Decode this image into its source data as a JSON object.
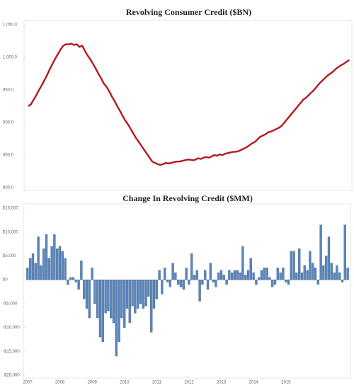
{
  "chart_data": [
    {
      "type": "line",
      "title": "Revolving Consumer Credit ($BN)",
      "color": "#b3191c",
      "values": [
        925,
        928,
        935,
        942,
        950,
        957,
        965,
        973,
        982,
        990,
        998,
        1005,
        1012,
        1018,
        1020,
        1020,
        1021,
        1019,
        1020,
        1016,
        1018,
        1010,
        1003,
        997,
        990,
        983,
        975,
        968,
        960,
        955,
        948,
        940,
        933,
        925,
        918,
        910,
        903,
        897,
        890,
        883,
        876,
        870,
        864,
        858,
        852,
        846,
        840,
        838,
        836,
        835,
        836,
        838,
        837,
        838,
        839,
        840,
        840,
        841,
        842,
        843,
        843,
        842,
        843,
        845,
        844,
        846,
        847,
        846,
        848,
        850,
        849,
        851,
        850,
        852,
        853,
        854,
        855,
        855,
        856,
        858,
        860,
        862,
        865,
        868,
        870,
        874,
        878,
        880,
        882,
        885,
        886,
        888,
        890,
        892,
        895,
        900,
        905,
        910,
        915,
        920,
        925,
        930,
        935,
        938,
        942,
        946,
        950,
        955,
        960,
        964,
        968,
        972,
        975,
        978,
        982,
        985,
        988,
        990,
        993,
        996
      ],
      "ylim": [
        800,
        1050
      ],
      "yticks": [
        {
          "value": 800,
          "label": "800.0"
        },
        {
          "value": 850,
          "label": "850.0"
        },
        {
          "value": 900,
          "label": "900.0"
        },
        {
          "value": 950,
          "label": "950.0"
        },
        {
          "value": 1000,
          "label": "1,000.0"
        },
        {
          "value": 1050,
          "label": "1,050.0"
        }
      ]
    },
    {
      "type": "bar",
      "title": "Change In Revolving Credit ($MM)",
      "color": "#5a86bb",
      "categories": [
        "2007",
        null,
        null,
        null,
        null,
        null,
        null,
        null,
        null,
        null,
        null,
        null,
        "2008",
        null,
        null,
        null,
        null,
        null,
        null,
        null,
        null,
        null,
        null,
        null,
        "2009",
        null,
        null,
        null,
        null,
        null,
        null,
        null,
        null,
        null,
        null,
        null,
        "2010",
        null,
        null,
        null,
        null,
        null,
        null,
        null,
        null,
        null,
        null,
        null,
        "2011",
        null,
        null,
        null,
        null,
        null,
        null,
        null,
        null,
        null,
        null,
        null,
        "2012",
        null,
        null,
        null,
        null,
        null,
        null,
        null,
        null,
        null,
        null,
        null,
        "2013",
        null,
        null,
        null,
        null,
        null,
        null,
        null,
        null,
        null,
        null,
        null,
        "2014",
        null,
        null,
        null,
        null,
        null,
        null,
        null,
        null,
        null,
        null,
        null,
        "2015",
        null,
        null,
        null,
        null,
        null,
        null,
        null,
        null,
        null,
        null,
        null,
        null,
        null,
        null,
        null,
        null,
        null,
        null,
        null,
        null,
        null,
        null,
        null
      ],
      "values": [
        2500,
        4500,
        5500,
        3500,
        9000,
        3000,
        6500,
        9500,
        4500,
        7000,
        9500,
        6500,
        7000,
        6000,
        4500,
        -1000,
        500,
        500,
        -500,
        -2000,
        4000,
        -4000,
        -6000,
        -8000,
        2500,
        -5000,
        -8000,
        -12000,
        -13000,
        -7000,
        -6500,
        -8000,
        -9000,
        -16000,
        -13000,
        -8000,
        -10000,
        -6000,
        -9000,
        -5500,
        -7000,
        -6000,
        -5000,
        -6000,
        -5500,
        -3500,
        -11000,
        -6000,
        -4000,
        2000,
        -3000,
        2500,
        -500,
        -1500,
        3500,
        1500,
        -1000,
        -1500,
        -2000,
        2500,
        -1000,
        5500,
        1000,
        2000,
        -4500,
        -1000,
        2000,
        -2000,
        3500,
        -500,
        -1500,
        1500,
        2000,
        1000,
        -1000,
        2000,
        1500,
        2000,
        2000,
        1500,
        7000,
        1000,
        2000,
        4500,
        1500,
        -1000,
        500,
        2000,
        2500,
        2500,
        500,
        -1500,
        -1000,
        2500,
        1500,
        2500,
        -500,
        -1000,
        6000,
        6000,
        1500,
        6500,
        1500,
        3000,
        2000,
        6000,
        3500,
        2500,
        -1000,
        11500,
        3000,
        5000,
        9000,
        3500,
        1500,
        3000,
        1500,
        -500,
        11500,
        2500
      ],
      "ylim": [
        -20000,
        15000
      ],
      "yticks": [
        {
          "value": -20000,
          "label": "-$20,000"
        },
        {
          "value": -15000,
          "label": "-$15,000"
        },
        {
          "value": -10000,
          "label": "-$10,000"
        },
        {
          "value": -5000,
          "label": "-$5,000"
        },
        {
          "value": 0,
          "label": "$0"
        },
        {
          "value": 5000,
          "label": "$5,000"
        },
        {
          "value": 10000,
          "label": "$10,000"
        },
        {
          "value": 15000,
          "label": "$15,000"
        }
      ]
    }
  ]
}
